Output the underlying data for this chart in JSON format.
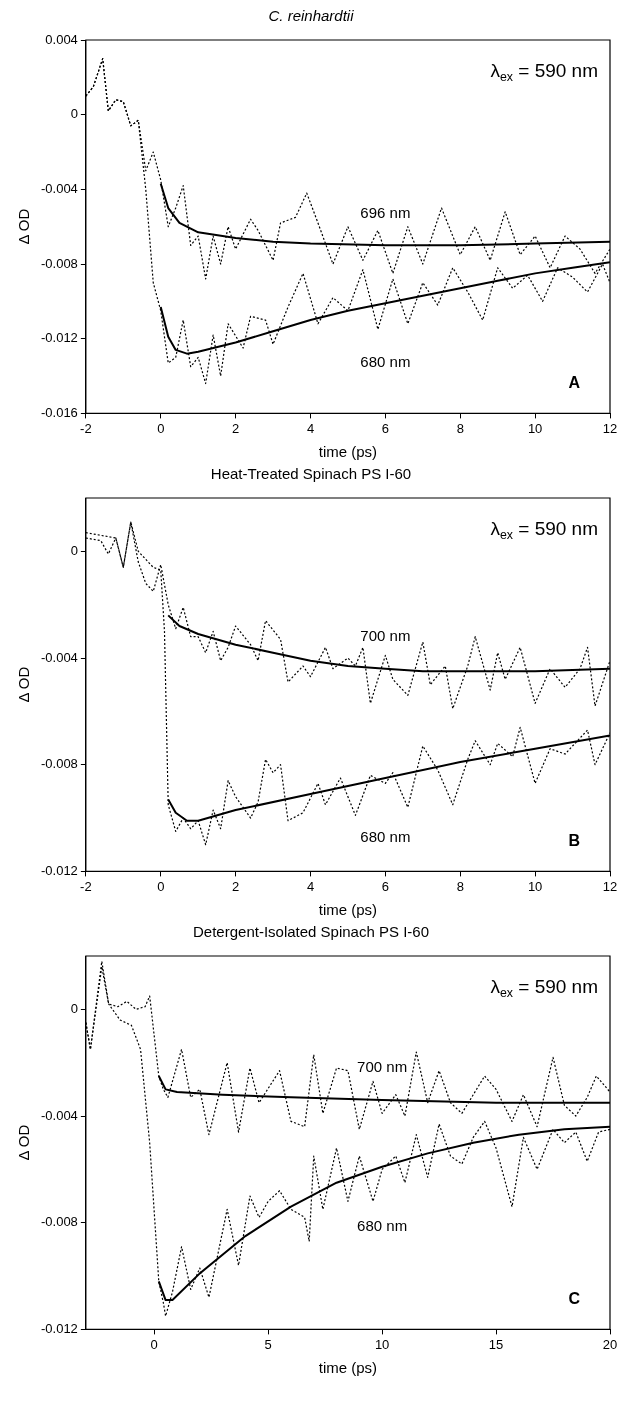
{
  "chart_data": [
    {
      "type": "line",
      "title": "C. reinhardtii",
      "xlabel": "time (ps)",
      "ylabel": "Δ OD",
      "xlim": [
        -2,
        12
      ],
      "xticks": [
        -2,
        0,
        2,
        4,
        6,
        8,
        10,
        12
      ],
      "ylim": [
        -0.016,
        0.004
      ],
      "yticks": [
        -0.016,
        -0.012,
        -0.008,
        -0.004,
        0,
        0.004
      ],
      "grid": false,
      "legend": false,
      "marker": "none",
      "annotations": [
        "λ$_{ex}$ = 590 nm",
        "A"
      ],
      "series": [
        {
          "color": "#000000",
          "line_style": "dotted",
          "x": [
            -2,
            -1.8,
            -1.55,
            -1.4,
            -1.2,
            -1.0,
            -0.8,
            -0.6,
            -0.4,
            -0.2,
            0,
            0.2,
            0.4,
            0.6,
            0.8,
            1.0,
            1.2,
            1.4,
            1.6,
            1.8,
            2.0,
            2.4,
            2.6,
            3.0,
            3.2,
            3.6,
            3.9,
            4.2,
            4.6,
            5.0,
            5.4,
            5.8,
            6.2,
            6.6,
            7.0,
            7.5,
            8.0,
            8.4,
            8.8,
            9.2,
            9.6,
            10.0,
            10.4,
            10.8,
            11.2,
            11.6,
            12.0
          ],
          "values": [
            0.001,
            0.0015,
            0.003,
            0.0002,
            0.0008,
            0.0007,
            -0.0006,
            -0.0003,
            -0.003,
            -0.002,
            -0.0035,
            -0.006,
            -0.005,
            -0.0038,
            -0.007,
            -0.0065,
            -0.0088,
            -0.0065,
            -0.008,
            -0.006,
            -0.0072,
            -0.0056,
            -0.0062,
            -0.0078,
            -0.0058,
            -0.0055,
            -0.0042,
            -0.0058,
            -0.008,
            -0.006,
            -0.0078,
            -0.0062,
            -0.0085,
            -0.006,
            -0.008,
            -0.005,
            -0.0075,
            -0.006,
            -0.0078,
            -0.0052,
            -0.0075,
            -0.0065,
            -0.0082,
            -0.0065,
            -0.0072,
            -0.0085,
            -0.0072
          ]
        },
        {
          "color": "#000000",
          "line_style": "dotted",
          "x": [
            -2,
            -1.8,
            -1.55,
            -1.4,
            -1.2,
            -1.0,
            -0.8,
            -0.6,
            -0.4,
            -0.2,
            0,
            0.2,
            0.4,
            0.6,
            0.8,
            1.0,
            1.2,
            1.4,
            1.6,
            1.8,
            2.2,
            2.4,
            2.8,
            3.0,
            3.4,
            3.8,
            4.2,
            4.6,
            5.0,
            5.4,
            5.8,
            6.2,
            6.6,
            7.0,
            7.4,
            7.8,
            8.2,
            8.6,
            9.0,
            9.4,
            9.8,
            10.2,
            10.6,
            11.0,
            11.4,
            11.8,
            12.0
          ],
          "values": [
            0.001,
            0.0015,
            0.003,
            0.0002,
            0.0008,
            0.0007,
            -0.0006,
            -0.0003,
            -0.004,
            -0.009,
            -0.0105,
            -0.0133,
            -0.013,
            -0.011,
            -0.0135,
            -0.013,
            -0.0144,
            -0.0118,
            -0.014,
            -0.0112,
            -0.0125,
            -0.0108,
            -0.011,
            -0.0123,
            -0.0103,
            -0.0085,
            -0.0112,
            -0.0098,
            -0.0105,
            -0.0083,
            -0.0115,
            -0.0088,
            -0.0112,
            -0.009,
            -0.0102,
            -0.0082,
            -0.0095,
            -0.011,
            -0.0082,
            -0.0093,
            -0.0086,
            -0.01,
            -0.0082,
            -0.0087,
            -0.0095,
            -0.008,
            -0.009
          ]
        },
        {
          "name": "696 nm",
          "color": "#000000",
          "line_style": "solid",
          "x": [
            0,
            0.2,
            0.5,
            1,
            2,
            3,
            4,
            6,
            8,
            10,
            12
          ],
          "values": [
            -0.0037,
            -0.005,
            -0.0058,
            -0.0063,
            -0.0066,
            -0.0068,
            -0.0069,
            -0.007,
            -0.007,
            -0.0069,
            -0.0068
          ]
        },
        {
          "name": "680 nm",
          "color": "#000000",
          "line_style": "solid",
          "x": [
            0,
            0.2,
            0.4,
            0.7,
            1,
            2,
            3,
            4,
            5,
            6,
            7,
            8,
            9,
            10,
            11,
            12
          ],
          "values": [
            -0.0103,
            -0.0119,
            -0.0126,
            -0.0128,
            -0.0127,
            -0.0122,
            -0.0116,
            -0.011,
            -0.0105,
            -0.0101,
            -0.0097,
            -0.0093,
            -0.0089,
            -0.0085,
            -0.0082,
            -0.0079
          ]
        }
      ]
    },
    {
      "type": "line",
      "title": "Heat-Treated Spinach PS I-60",
      "xlabel": "time (ps)",
      "ylabel": "Δ OD",
      "xlim": [
        -2,
        12
      ],
      "xticks": [
        -2,
        0,
        2,
        4,
        6,
        8,
        10,
        12
      ],
      "ylim": [
        -0.012,
        0.002
      ],
      "yticks": [
        -0.012,
        -0.008,
        -0.004,
        0
      ],
      "grid": false,
      "legend": false,
      "marker": "none",
      "annotations": [
        "λ$_{ex}$ = 590 nm",
        "B"
      ],
      "series": [
        {
          "color": "#000000",
          "line_style": "dotted",
          "x": [
            -2,
            -1.6,
            -1.4,
            -1.2,
            -1.0,
            -0.8,
            -0.6,
            -0.4,
            -0.2,
            0,
            0.2,
            0.4,
            0.6,
            0.8,
            1.0,
            1.2,
            1.4,
            1.6,
            1.8,
            2.0,
            2.4,
            2.6,
            2.8,
            3.2,
            3.4,
            3.8,
            4.0,
            4.4,
            4.6,
            5.0,
            5.2,
            5.4,
            5.6,
            6.0,
            6.2,
            6.6,
            7.0,
            7.2,
            7.6,
            7.8,
            8.2,
            8.4,
            8.8,
            9.0,
            9.2,
            9.6,
            10.0,
            10.4,
            10.8,
            11.2,
            11.4,
            11.6,
            12.0
          ],
          "values": [
            0.0005,
            0.0004,
            -0.0001,
            0.0005,
            -0.0006,
            0.0011,
            -0.0004,
            -0.0012,
            -0.0015,
            -0.0005,
            -0.002,
            -0.0029,
            -0.0021,
            -0.0032,
            -0.0032,
            -0.0038,
            -0.003,
            -0.0041,
            -0.0036,
            -0.0028,
            -0.0035,
            -0.0041,
            -0.0026,
            -0.0033,
            -0.0049,
            -0.0043,
            -0.0047,
            -0.0036,
            -0.0044,
            -0.004,
            -0.0043,
            -0.0036,
            -0.0057,
            -0.0039,
            -0.0048,
            -0.0054,
            -0.0034,
            -0.005,
            -0.0043,
            -0.0059,
            -0.0043,
            -0.0032,
            -0.0052,
            -0.0038,
            -0.0048,
            -0.0036,
            -0.0057,
            -0.0044,
            -0.0051,
            -0.0044,
            -0.0036,
            -0.0058,
            -0.0041
          ]
        },
        {
          "color": "#000000",
          "line_style": "dotted",
          "x": [
            -2,
            -1.6,
            -1.2,
            -1.0,
            -0.8,
            -0.6,
            -0.4,
            -0.2,
            0,
            0.1,
            0.2,
            0.4,
            0.6,
            0.8,
            1.0,
            1.2,
            1.4,
            1.6,
            1.8,
            2.0,
            2.4,
            2.6,
            2.8,
            3.0,
            3.2,
            3.4,
            3.8,
            4.2,
            4.4,
            4.8,
            5.2,
            5.6,
            6.0,
            6.2,
            6.6,
            7.0,
            7.4,
            7.8,
            8.2,
            8.4,
            8.8,
            9.0,
            9.4,
            9.6,
            10.0,
            10.4,
            10.8,
            11.2,
            11.4,
            11.6,
            12.0
          ],
          "values": [
            0.0007,
            0.0006,
            0.0005,
            -0.0006,
            0.0011,
            0,
            -0.0003,
            -0.0006,
            -0.0007,
            -0.003,
            -0.0095,
            -0.0105,
            -0.01,
            -0.0104,
            -0.0101,
            -0.011,
            -0.0097,
            -0.0104,
            -0.0086,
            -0.0092,
            -0.01,
            -0.0094,
            -0.0078,
            -0.0083,
            -0.008,
            -0.0101,
            -0.0098,
            -0.0087,
            -0.0095,
            -0.0085,
            -0.0099,
            -0.0084,
            -0.0087,
            -0.0083,
            -0.0096,
            -0.0073,
            -0.0082,
            -0.0095,
            -0.0078,
            -0.0071,
            -0.008,
            -0.0072,
            -0.0077,
            -0.0066,
            -0.0087,
            -0.0074,
            -0.0076,
            -0.007,
            -0.0067,
            -0.008,
            -0.0068
          ]
        },
        {
          "name": "700 nm",
          "color": "#000000",
          "line_style": "solid",
          "x": [
            0.2,
            0.5,
            1,
            2,
            3,
            4,
            5,
            6,
            7,
            8,
            10,
            12
          ],
          "values": [
            -0.0024,
            -0.0028,
            -0.0031,
            -0.0035,
            -0.0038,
            -0.0041,
            -0.0043,
            -0.0044,
            -0.0045,
            -0.0045,
            -0.0045,
            -0.0044
          ]
        },
        {
          "name": "680 nm",
          "color": "#000000",
          "line_style": "solid",
          "x": [
            0.2,
            0.4,
            0.7,
            1,
            2,
            4,
            6,
            8,
            10,
            12
          ],
          "values": [
            -0.0093,
            -0.0098,
            -0.0101,
            -0.0101,
            -0.0097,
            -0.0091,
            -0.0085,
            -0.0079,
            -0.0074,
            -0.0069
          ]
        }
      ]
    },
    {
      "type": "line",
      "title": "Detergent-Isolated Spinach PS I-60",
      "xlabel": "time (ps)",
      "ylabel": "Δ OD",
      "xlim": [
        -3,
        20
      ],
      "xticks": [
        0,
        5,
        10,
        15,
        20
      ],
      "ylim": [
        -0.012,
        0.002
      ],
      "yticks": [
        -0.012,
        -0.008,
        -0.004,
        0
      ],
      "grid": false,
      "legend": false,
      "marker": "none",
      "annotations": [
        "λ$_{ex}$ = 590 nm",
        "C"
      ],
      "series": [
        {
          "color": "#000000",
          "line_style": "dotted",
          "x": [
            -3,
            -2.8,
            -2.3,
            -2.0,
            -1.6,
            -1.2,
            -0.8,
            -0.4,
            -0.2,
            0.2,
            0.4,
            0.6,
            1.2,
            1.6,
            2.0,
            2.4,
            3.2,
            3.7,
            4.2,
            4.6,
            5.5,
            6.0,
            6.6,
            7.0,
            7.4,
            8.0,
            8.5,
            9.0,
            9.6,
            10.0,
            10.6,
            11.0,
            11.5,
            12.0,
            12.5,
            13.0,
            13.5,
            14.0,
            14.5,
            15.0,
            15.7,
            16.2,
            16.8,
            17.5,
            18.0,
            18.5,
            19.0,
            19.4,
            20.0
          ],
          "values": [
            -0.0005,
            -0.0015,
            0.0018,
            0.0002,
            0.0001,
            0.0003,
            0,
            0.0001,
            0.0005,
            -0.0025,
            -0.003,
            -0.0033,
            -0.0015,
            -0.0033,
            -0.003,
            -0.0047,
            -0.002,
            -0.0046,
            -0.0022,
            -0.0035,
            -0.0023,
            -0.0042,
            -0.0044,
            -0.0017,
            -0.0039,
            -0.0022,
            -0.0023,
            -0.0045,
            -0.0027,
            -0.0039,
            -0.0032,
            -0.004,
            -0.0016,
            -0.0035,
            -0.0023,
            -0.0035,
            -0.0039,
            -0.0032,
            -0.0025,
            -0.003,
            -0.0042,
            -0.0032,
            -0.0044,
            -0.0018,
            -0.0036,
            -0.004,
            -0.0033,
            -0.0025,
            -0.0031
          ]
        },
        {
          "color": "#000000",
          "line_style": "dotted",
          "x": [
            -3,
            -2.8,
            -2.3,
            -2.0,
            -1.5,
            -1.0,
            -0.6,
            -0.2,
            0.2,
            0.4,
            0.5,
            0.8,
            1.2,
            1.6,
            2.0,
            2.4,
            3.2,
            3.7,
            4.2,
            4.6,
            5.0,
            5.5,
            6.0,
            6.6,
            6.8,
            7.0,
            7.4,
            8.0,
            8.5,
            9.0,
            9.6,
            10.0,
            10.6,
            11.0,
            11.5,
            12.0,
            12.5,
            13.0,
            13.5,
            14.0,
            14.5,
            15.0,
            15.7,
            16.2,
            16.8,
            17.5,
            18.0,
            18.5,
            19.0,
            19.5,
            20.0
          ],
          "values": [
            -0.0005,
            -0.0015,
            0.0016,
            0.0002,
            -0.0004,
            -0.0006,
            -0.0015,
            -0.005,
            -0.0102,
            -0.011,
            -0.0115,
            -0.0106,
            -0.0089,
            -0.0105,
            -0.0097,
            -0.0108,
            -0.0075,
            -0.0096,
            -0.007,
            -0.0078,
            -0.0072,
            -0.0068,
            -0.0075,
            -0.0078,
            -0.0087,
            -0.0055,
            -0.0075,
            -0.0052,
            -0.0072,
            -0.0055,
            -0.0072,
            -0.006,
            -0.0055,
            -0.0065,
            -0.0047,
            -0.0063,
            -0.0043,
            -0.0055,
            -0.0058,
            -0.0048,
            -0.0042,
            -0.0052,
            -0.0074,
            -0.0048,
            -0.006,
            -0.0045,
            -0.005,
            -0.0046,
            -0.0057,
            -0.0046,
            -0.0045
          ]
        },
        {
          "name": "700 nm",
          "color": "#000000",
          "line_style": "solid",
          "x": [
            0.2,
            0.5,
            1,
            3,
            6,
            10,
            15,
            20
          ],
          "values": [
            -0.0025,
            -0.003,
            -0.0031,
            -0.0032,
            -0.0033,
            -0.0034,
            -0.0035,
            -0.0035
          ]
        },
        {
          "name": "680 nm",
          "color": "#000000",
          "line_style": "solid",
          "x": [
            0.2,
            0.5,
            0.8,
            2,
            4,
            6,
            8,
            10,
            12,
            14,
            16,
            18,
            20
          ],
          "values": [
            -0.0102,
            -0.0109,
            -0.0109,
            -0.0099,
            -0.0085,
            -0.0074,
            -0.0065,
            -0.0059,
            -0.0054,
            -0.005,
            -0.0047,
            -0.0045,
            -0.0044
          ]
        }
      ]
    }
  ]
}
